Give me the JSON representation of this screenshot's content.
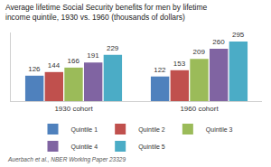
{
  "chart_data": {
    "type": "bar",
    "title": "Average lifetime Social Security benefits for men by lifetime income quintile, 1930 vs. 1960 (thousands of dollars)",
    "source": "Auerbach et al., NBER Working Paper 23329",
    "categories": [
      "1930 cohort",
      "1960 cohort"
    ],
    "series": [
      {
        "name": "Quintile 1",
        "color": "#4f81bd",
        "values": [
          126,
          122
        ]
      },
      {
        "name": "Quintile 2",
        "color": "#c0504d",
        "values": [
          144,
          153
        ]
      },
      {
        "name": "Quintile 3",
        "color": "#9bbb59",
        "values": [
          166,
          209
        ]
      },
      {
        "name": "Quintile 4",
        "color": "#8064a2",
        "values": [
          191,
          260
        ]
      },
      {
        "name": "Quintile 5",
        "color": "#4bacc6",
        "values": [
          229,
          295
        ]
      }
    ],
    "ylim": [
      0,
      340
    ],
    "data_labels": true,
    "tick_labels": "x",
    "legend": "bottom",
    "grid": false
  }
}
